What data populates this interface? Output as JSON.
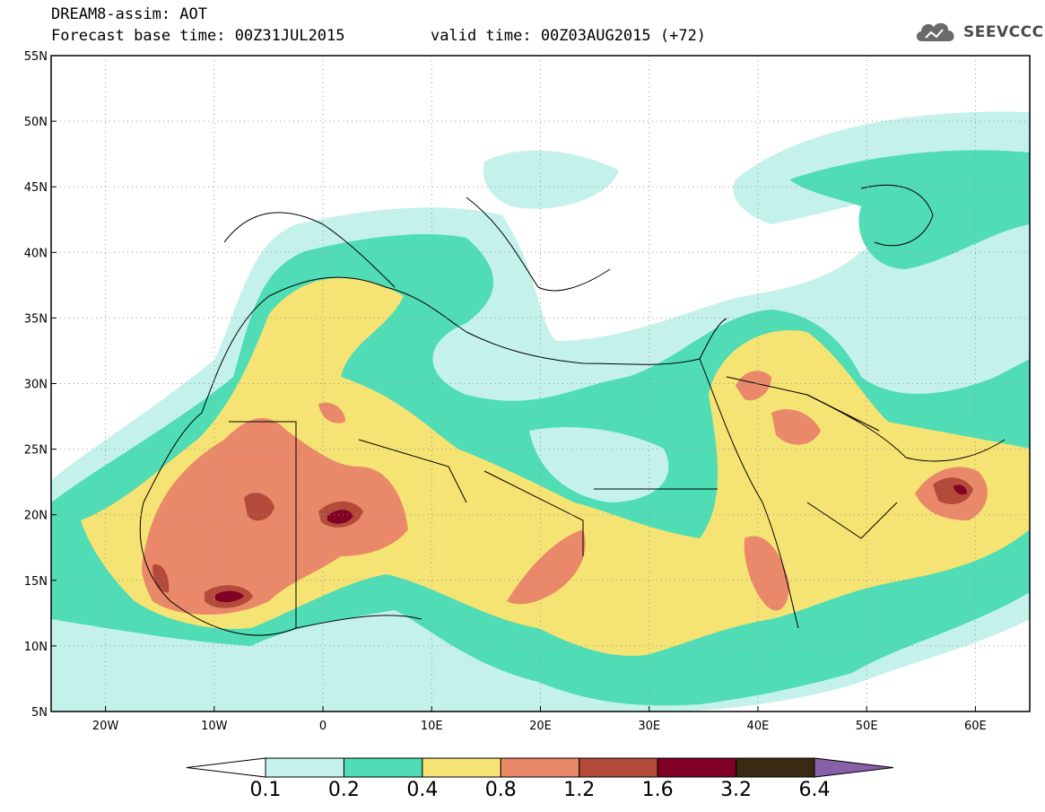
{
  "header": {
    "title": "DREAM8-assim: AOT",
    "base_time": "Forecast base time: 00Z31JUL2015",
    "valid_time": "valid time: 00Z03AUG2015 (+72)"
  },
  "logo": {
    "text": "SEEVCCC",
    "icon": "cloud-icon"
  },
  "map": {
    "lat_labels": [
      "55N",
      "50N",
      "45N",
      "40N",
      "35N",
      "30N",
      "25N",
      "20N",
      "15N",
      "10N",
      "5N"
    ],
    "lon_labels": [
      "20W",
      "10W",
      "0",
      "10E",
      "20E",
      "30E",
      "40E",
      "50E",
      "60E"
    ],
    "lon_range": [
      -25,
      65
    ],
    "lat_range": [
      5,
      55
    ],
    "grid": "dotted"
  },
  "colorbar": {
    "levels": [
      "0.1",
      "0.2",
      "0.4",
      "0.8",
      "1.2",
      "1.6",
      "3.2",
      "6.4"
    ],
    "colors": [
      "#ffffff",
      "#c4f2ea",
      "#50dcb4",
      "#f5e373",
      "#e9896a",
      "#b34a3a",
      "#800026",
      "#3a2a14",
      "#8860a8"
    ]
  }
}
